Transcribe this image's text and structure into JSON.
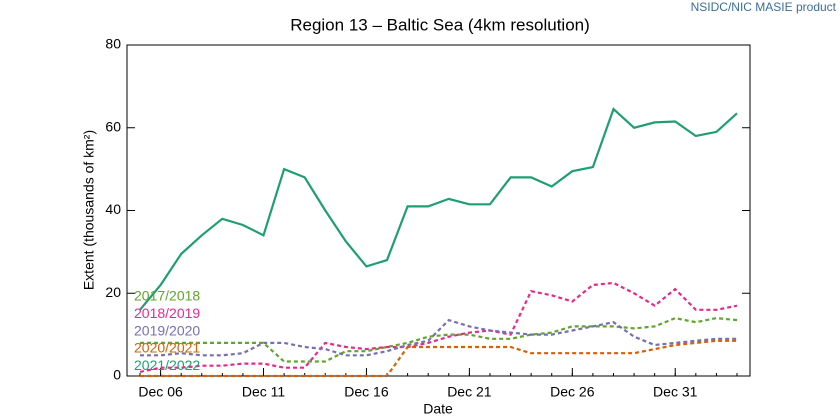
{
  "chart_data": {
    "type": "line",
    "title": "Region 13 – Baltic Sea (4km resolution)",
    "source": "NSIDC/NIC MASIE product",
    "xlabel": "Date",
    "ylabel": "Extent (thousands of km²)",
    "categories": [
      null,
      "Dec 06",
      null,
      null,
      null,
      null,
      "Dec 11",
      null,
      null,
      null,
      null,
      "Dec 16",
      null,
      null,
      null,
      null,
      "Dec 21",
      null,
      null,
      null,
      null,
      "Dec 26",
      null,
      null,
      null,
      null,
      "Dec 31",
      null,
      null,
      null
    ],
    "ylim": [
      0,
      80
    ],
    "yticks": [
      0,
      20,
      40,
      60,
      80
    ],
    "legend": "lower left",
    "series": [
      {
        "name": "2017/2018",
        "color": "#5fa62a",
        "style": "dashed",
        "values": [
          8,
          8,
          8,
          8,
          8,
          8,
          8,
          3.5,
          3.5,
          3.5,
          6,
          6,
          7,
          8,
          9.5,
          10,
          10,
          9,
          9,
          10,
          10.5,
          12,
          12,
          12,
          11.5,
          12,
          14,
          13,
          14,
          13.5
        ]
      },
      {
        "name": "2018/2019",
        "color": "#e7298a",
        "style": "dashed",
        "values": [
          1,
          2,
          2,
          2.5,
          2.5,
          3,
          3,
          2,
          2,
          8,
          7,
          6.5,
          7,
          7,
          8,
          9.5,
          10.5,
          11,
          10,
          20.5,
          19.5,
          18,
          22,
          22.5,
          20,
          17,
          21,
          16,
          16,
          17
        ]
      },
      {
        "name": "2019/2020",
        "color": "#7570b3",
        "style": "dashed",
        "values": [
          5,
          5,
          5.5,
          5,
          5,
          5.5,
          8,
          8,
          7,
          6.5,
          5,
          5,
          6,
          7.5,
          8.5,
          13.5,
          12,
          11,
          10.5,
          10,
          10,
          11,
          12,
          13,
          9.5,
          7.5,
          8,
          8.5,
          9,
          9
        ]
      },
      {
        "name": "2020/2021",
        "color": "#d95f02",
        "style": "dashed",
        "values": [
          0,
          0,
          0,
          0,
          0,
          0,
          0,
          0,
          0,
          0,
          0,
          0,
          0,
          7,
          7,
          7,
          7,
          7,
          7,
          5.5,
          5.5,
          5.5,
          5.5,
          5.5,
          5.5,
          6.5,
          7.5,
          8,
          8.5,
          8.5
        ]
      },
      {
        "name": "2021/2022",
        "color": "#1f9e74",
        "style": "solid",
        "values": [
          16,
          22,
          29.5,
          34,
          38,
          36.5,
          34,
          50,
          48,
          40,
          32.5,
          26.5,
          28,
          41,
          41,
          42.8,
          41.5,
          41.5,
          48,
          48,
          45.8,
          49.5,
          50.5,
          64.5,
          60,
          61.3,
          61.5,
          58,
          59,
          63.5
        ]
      }
    ]
  }
}
